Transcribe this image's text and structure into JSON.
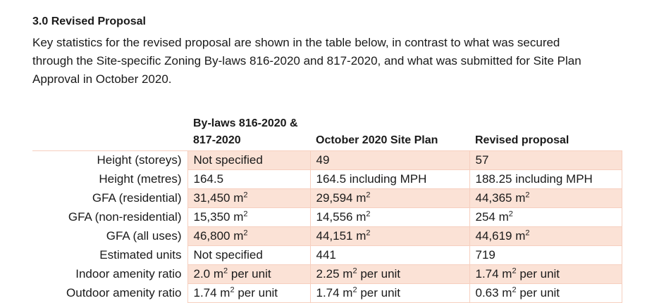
{
  "section": {
    "heading": "3.0 Revised Proposal",
    "intro": "Key statistics for the revised proposal are shown in the table below, in contrast to what was secured through the Site-specific Zoning By-laws 816-2020 and 817-2020, and what was submitted for Site Plan Approval in October 2020."
  },
  "table": {
    "headers": {
      "label": "",
      "bylaws": "By-laws 816-2020 & 817-2020",
      "october": "October 2020 Site Plan",
      "revised": "Revised proposal"
    },
    "unit_superscript": "2",
    "rows": [
      {
        "label": "Height (storeys)",
        "bylaws": "Not specified",
        "october": "49",
        "revised": "57"
      },
      {
        "label": "Height (metres)",
        "bylaws": "164.5",
        "october": "164.5 including MPH",
        "revised": "188.25 including MPH"
      },
      {
        "label": "GFA (residential)",
        "bylaws": "31,450 m",
        "bylaws_sup": "2",
        "october": "29,594 m",
        "october_sup": "2",
        "revised": "44,365 m",
        "revised_sup": "2"
      },
      {
        "label": "GFA (non-residential)",
        "bylaws": "15,350 m",
        "bylaws_sup": "2",
        "october": "14,556 m",
        "october_sup": "2",
        "revised": "254 m",
        "revised_sup": "2"
      },
      {
        "label": "GFA (all uses)",
        "bylaws": "46,800 m",
        "bylaws_sup": "2",
        "october": "44,151 m",
        "october_sup": "2",
        "revised": "44,619 m",
        "revised_sup": "2"
      },
      {
        "label": "Estimated units",
        "bylaws": "Not specified",
        "october": "441",
        "revised": "719"
      },
      {
        "label": "Indoor amenity ratio",
        "bylaws": "2.0 m",
        "bylaws_sup": "2",
        "bylaws_tail": " per unit",
        "october": "2.25 m",
        "october_sup": "2",
        "october_tail": " per unit",
        "revised": "1.74 m",
        "revised_sup": "2",
        "revised_tail": " per unit"
      },
      {
        "label": "Outdoor amenity ratio",
        "bylaws": "1.74 m",
        "bylaws_sup": "2",
        "bylaws_tail": " per unit",
        "october": "1.74 m",
        "october_sup": "2",
        "october_tail": " per unit",
        "revised": "0.63 m",
        "revised_sup": "2",
        "revised_tail": " per unit"
      }
    ]
  }
}
